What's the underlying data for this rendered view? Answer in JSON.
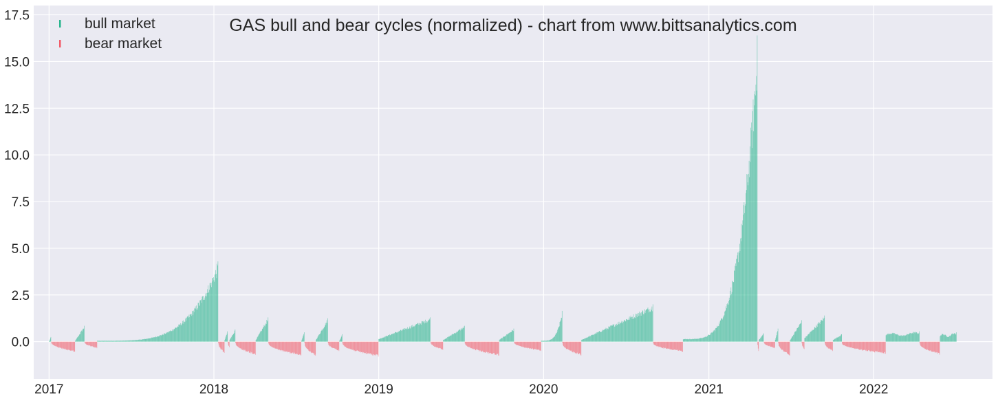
{
  "chart_data": {
    "type": "bar",
    "title": "GAS bull and bear cycles (normalized)  - chart from www.bittsanalytics.com",
    "xlabel": "",
    "ylabel": "",
    "ylim": [
      -2.0,
      18.0
    ],
    "xlim": [
      "2016-11-28",
      "2022-09-21"
    ],
    "yticks": [
      {
        "value": 0.0,
        "label": "0.0"
      },
      {
        "value": 2.5,
        "label": "2.5"
      },
      {
        "value": 5.0,
        "label": "5.0"
      },
      {
        "value": 7.5,
        "label": "7.5"
      },
      {
        "value": 10.0,
        "label": "10.0"
      },
      {
        "value": 12.5,
        "label": "12.5"
      },
      {
        "value": 15.0,
        "label": "15.0"
      },
      {
        "value": 17.5,
        "label": "17.5"
      }
    ],
    "xticks": [
      {
        "date": "2017-01-01",
        "label": "2017"
      },
      {
        "date": "2018-01-01",
        "label": "2018"
      },
      {
        "date": "2019-01-01",
        "label": "2019"
      },
      {
        "date": "2020-01-01",
        "label": "2020"
      },
      {
        "date": "2021-01-01",
        "label": "2021"
      },
      {
        "date": "2022-01-01",
        "label": "2022"
      }
    ],
    "grid": true,
    "legend_position": "top-left",
    "colors": {
      "bull": "#2ab58e",
      "bear": "#f25c69",
      "background": "#eaeaf2",
      "grid": "#ffffff",
      "text": "#262626"
    },
    "series": [
      {
        "name": "bull market",
        "color": "#2ab58e",
        "segments": [
          {
            "start": "2017-01-01",
            "end": "2017-01-05",
            "y0": 0.0,
            "peak": 0.25,
            "shape": "linear"
          },
          {
            "start": "2017-02-28",
            "end": "2017-03-20",
            "y0": 0.05,
            "peak": 0.85,
            "shape": "linear"
          },
          {
            "start": "2017-04-18",
            "end": "2018-01-10",
            "y0": 0.05,
            "peak": 4.3,
            "shape": "exp"
          },
          {
            "start": "2018-01-25",
            "end": "2018-01-31",
            "y0": 0.1,
            "peak": 0.55,
            "shape": "linear"
          },
          {
            "start": "2018-02-05",
            "end": "2018-02-17",
            "y0": 0.1,
            "peak": 0.65,
            "shape": "linear"
          },
          {
            "start": "2018-04-04",
            "end": "2018-05-01",
            "y0": 0.1,
            "peak": 1.3,
            "shape": "linear"
          },
          {
            "start": "2018-07-14",
            "end": "2018-07-20",
            "y0": 0.05,
            "peak": 0.5,
            "shape": "linear"
          },
          {
            "start": "2018-08-15",
            "end": "2018-09-10",
            "y0": 0.1,
            "peak": 1.25,
            "shape": "linear"
          },
          {
            "start": "2018-10-06",
            "end": "2018-10-12",
            "y0": 0.05,
            "peak": 0.4,
            "shape": "linear"
          },
          {
            "start": "2019-01-01",
            "end": "2019-04-25",
            "y0": 0.15,
            "peak": 1.3,
            "shape": "linear"
          },
          {
            "start": "2019-05-24",
            "end": "2019-07-10",
            "y0": 0.1,
            "peak": 0.85,
            "shape": "linear"
          },
          {
            "start": "2019-09-25",
            "end": "2019-10-27",
            "y0": 0.1,
            "peak": 0.7,
            "shape": "linear"
          },
          {
            "start": "2019-12-27",
            "end": "2020-02-11",
            "y0": 0.05,
            "peak": 1.65,
            "shape": "exp"
          },
          {
            "start": "2020-03-25",
            "end": "2020-08-30",
            "y0": 0.1,
            "peak": 2.0,
            "shape": "linear"
          },
          {
            "start": "2020-11-05",
            "end": "2021-04-18",
            "y0": 0.15,
            "peak": 16.4,
            "shape": "exp"
          },
          {
            "start": "2021-04-22",
            "end": "2021-05-02",
            "y0": 0.1,
            "peak": 0.45,
            "shape": "linear"
          },
          {
            "start": "2021-05-28",
            "end": "2021-06-03",
            "y0": 0.1,
            "peak": 0.7,
            "shape": "linear"
          },
          {
            "start": "2021-06-30",
            "end": "2021-07-25",
            "y0": 0.1,
            "peak": 1.15,
            "shape": "linear"
          },
          {
            "start": "2021-08-01",
            "end": "2021-09-14",
            "y0": 0.2,
            "peak": 1.4,
            "shape": "linear"
          },
          {
            "start": "2021-10-03",
            "end": "2021-10-22",
            "y0": 0.1,
            "peak": 0.4,
            "shape": "linear"
          },
          {
            "start": "2022-01-28",
            "end": "2022-04-12",
            "y0": 0.2,
            "peak": 0.55,
            "shape": "flat"
          },
          {
            "start": "2022-05-28",
            "end": "2022-07-03",
            "y0": 0.15,
            "peak": 0.5,
            "shape": "flat"
          }
        ]
      },
      {
        "name": "bear market",
        "color": "#f25c69",
        "segments": [
          {
            "start": "2017-01-06",
            "end": "2017-02-27",
            "y0": -0.05,
            "trough": -0.55
          },
          {
            "start": "2017-03-21",
            "end": "2017-04-17",
            "y0": -0.05,
            "trough": -0.35
          },
          {
            "start": "2018-01-11",
            "end": "2018-01-24",
            "y0": -0.1,
            "trough": -0.6
          },
          {
            "start": "2018-02-01",
            "end": "2018-02-04",
            "y0": -0.05,
            "trough": -0.3
          },
          {
            "start": "2018-02-18",
            "end": "2018-04-03",
            "y0": -0.1,
            "trough": -0.7
          },
          {
            "start": "2018-05-02",
            "end": "2018-07-13",
            "y0": -0.1,
            "trough": -0.75
          },
          {
            "start": "2018-07-21",
            "end": "2018-08-14",
            "y0": -0.1,
            "trough": -0.75
          },
          {
            "start": "2018-09-11",
            "end": "2018-10-05",
            "y0": -0.1,
            "trough": -0.5
          },
          {
            "start": "2018-10-13",
            "end": "2018-12-31",
            "y0": -0.1,
            "trough": -0.8
          },
          {
            "start": "2019-04-26",
            "end": "2019-05-23",
            "y0": -0.05,
            "trough": -0.45
          },
          {
            "start": "2019-07-11",
            "end": "2019-09-24",
            "y0": -0.1,
            "trough": -0.75
          },
          {
            "start": "2019-10-28",
            "end": "2019-12-26",
            "y0": -0.05,
            "trough": -0.5
          },
          {
            "start": "2020-02-12",
            "end": "2020-03-24",
            "y0": -0.1,
            "trough": -0.75
          },
          {
            "start": "2020-08-31",
            "end": "2020-11-04",
            "y0": -0.1,
            "trough": -0.55
          },
          {
            "start": "2021-04-19",
            "end": "2021-04-21",
            "y0": -0.2,
            "trough": -0.5
          },
          {
            "start": "2021-05-03",
            "end": "2021-05-27",
            "y0": -0.05,
            "trough": -0.35
          },
          {
            "start": "2021-06-04",
            "end": "2021-06-29",
            "y0": -0.1,
            "trough": -0.75
          },
          {
            "start": "2021-07-26",
            "end": "2021-07-31",
            "y0": -0.1,
            "trough": -0.4
          },
          {
            "start": "2021-09-15",
            "end": "2021-10-02",
            "y0": -0.1,
            "trough": -0.5
          },
          {
            "start": "2021-10-23",
            "end": "2022-01-27",
            "y0": -0.1,
            "trough": -0.65
          },
          {
            "start": "2022-04-13",
            "end": "2022-05-27",
            "y0": -0.1,
            "trough": -0.7
          }
        ]
      }
    ]
  }
}
